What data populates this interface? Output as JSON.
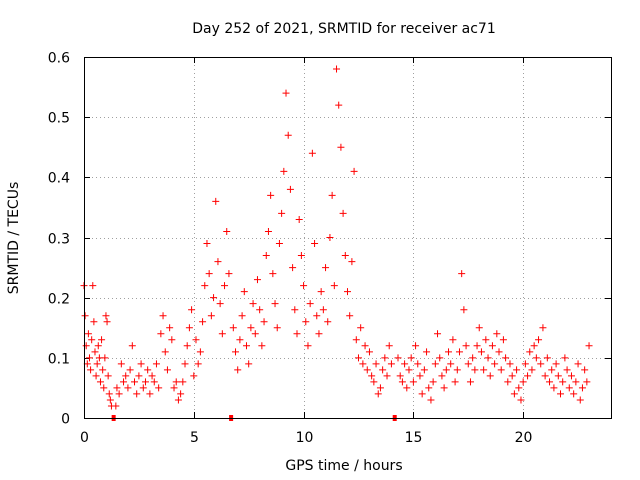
{
  "chart_data": {
    "type": "scatter",
    "title": "Day 252 of 2021, SRMTID for receiver ac71",
    "xlabel": "GPS time / hours",
    "ylabel": "SRMTID / TECUs",
    "xlim": [
      0,
      24
    ],
    "ylim": [
      0,
      0.6
    ],
    "xticks": [
      0,
      5,
      10,
      15,
      20
    ],
    "xtick_labels": [
      "0",
      "5",
      "10",
      "15",
      "20"
    ],
    "yticks": [
      0,
      0.1,
      0.2,
      0.3,
      0.4,
      0.5,
      0.6
    ],
    "ytick_labels": [
      "0",
      "0.1",
      "0.2",
      "0.3",
      "0.4",
      "0.5",
      "0.6"
    ],
    "grid": true,
    "marker": "+",
    "color": "#ff0000",
    "gap_markers_x": [
      1.35,
      6.7,
      14.15
    ],
    "series": [
      {
        "name": "SRMTID",
        "points": [
          [
            0.0,
            0.22
          ],
          [
            0.05,
            0.17
          ],
          [
            0.1,
            0.12
          ],
          [
            0.15,
            0.09
          ],
          [
            0.2,
            0.14
          ],
          [
            0.25,
            0.1
          ],
          [
            0.3,
            0.08
          ],
          [
            0.35,
            0.13
          ],
          [
            0.4,
            0.22
          ],
          [
            0.45,
            0.16
          ],
          [
            0.5,
            0.11
          ],
          [
            0.55,
            0.07
          ],
          [
            0.6,
            0.09
          ],
          [
            0.65,
            0.12
          ],
          [
            0.7,
            0.1
          ],
          [
            0.75,
            0.06
          ],
          [
            0.8,
            0.13
          ],
          [
            0.85,
            0.08
          ],
          [
            0.9,
            0.05
          ],
          [
            0.95,
            0.1
          ],
          [
            1.0,
            0.17
          ],
          [
            1.05,
            0.16
          ],
          [
            1.1,
            0.07
          ],
          [
            1.15,
            0.04
          ],
          [
            1.2,
            0.03
          ],
          [
            1.25,
            0.02
          ],
          [
            1.45,
            0.02
          ],
          [
            1.5,
            0.05
          ],
          [
            1.6,
            0.04
          ],
          [
            1.7,
            0.09
          ],
          [
            1.8,
            0.06
          ],
          [
            1.9,
            0.07
          ],
          [
            2.0,
            0.05
          ],
          [
            2.1,
            0.08
          ],
          [
            2.2,
            0.12
          ],
          [
            2.3,
            0.06
          ],
          [
            2.4,
            0.04
          ],
          [
            2.5,
            0.07
          ],
          [
            2.6,
            0.09
          ],
          [
            2.7,
            0.05
          ],
          [
            2.8,
            0.06
          ],
          [
            2.9,
            0.08
          ],
          [
            3.0,
            0.04
          ],
          [
            3.1,
            0.07
          ],
          [
            3.2,
            0.06
          ],
          [
            3.3,
            0.09
          ],
          [
            3.4,
            0.05
          ],
          [
            3.5,
            0.14
          ],
          [
            3.6,
            0.17
          ],
          [
            3.7,
            0.11
          ],
          [
            3.8,
            0.08
          ],
          [
            3.9,
            0.15
          ],
          [
            4.0,
            0.13
          ],
          [
            4.1,
            0.05
          ],
          [
            4.2,
            0.06
          ],
          [
            4.3,
            0.03
          ],
          [
            4.4,
            0.04
          ],
          [
            4.5,
            0.06
          ],
          [
            4.6,
            0.09
          ],
          [
            4.7,
            0.12
          ],
          [
            4.8,
            0.15
          ],
          [
            4.9,
            0.18
          ],
          [
            5.0,
            0.07
          ],
          [
            5.1,
            0.13
          ],
          [
            5.2,
            0.09
          ],
          [
            5.3,
            0.11
          ],
          [
            5.4,
            0.16
          ],
          [
            5.5,
            0.22
          ],
          [
            5.6,
            0.29
          ],
          [
            5.7,
            0.24
          ],
          [
            5.8,
            0.17
          ],
          [
            5.9,
            0.2
          ],
          [
            6.0,
            0.36
          ],
          [
            6.1,
            0.26
          ],
          [
            6.2,
            0.19
          ],
          [
            6.3,
            0.14
          ],
          [
            6.4,
            0.22
          ],
          [
            6.5,
            0.31
          ],
          [
            6.6,
            0.24
          ],
          [
            6.8,
            0.15
          ],
          [
            6.9,
            0.11
          ],
          [
            7.0,
            0.08
          ],
          [
            7.1,
            0.13
          ],
          [
            7.2,
            0.17
          ],
          [
            7.3,
            0.21
          ],
          [
            7.4,
            0.12
          ],
          [
            7.5,
            0.09
          ],
          [
            7.6,
            0.15
          ],
          [
            7.7,
            0.19
          ],
          [
            7.8,
            0.14
          ],
          [
            7.9,
            0.23
          ],
          [
            8.0,
            0.18
          ],
          [
            8.1,
            0.12
          ],
          [
            8.2,
            0.16
          ],
          [
            8.3,
            0.27
          ],
          [
            8.4,
            0.31
          ],
          [
            8.5,
            0.37
          ],
          [
            8.6,
            0.24
          ],
          [
            8.7,
            0.19
          ],
          [
            8.8,
            0.15
          ],
          [
            8.9,
            0.29
          ],
          [
            9.0,
            0.34
          ],
          [
            9.1,
            0.41
          ],
          [
            9.2,
            0.54
          ],
          [
            9.3,
            0.47
          ],
          [
            9.4,
            0.38
          ],
          [
            9.5,
            0.25
          ],
          [
            9.6,
            0.18
          ],
          [
            9.7,
            0.14
          ],
          [
            9.8,
            0.33
          ],
          [
            9.9,
            0.27
          ],
          [
            10.0,
            0.22
          ],
          [
            10.1,
            0.16
          ],
          [
            10.2,
            0.12
          ],
          [
            10.3,
            0.19
          ],
          [
            10.4,
            0.44
          ],
          [
            10.5,
            0.29
          ],
          [
            10.6,
            0.17
          ],
          [
            10.7,
            0.14
          ],
          [
            10.8,
            0.21
          ],
          [
            10.9,
            0.18
          ],
          [
            11.0,
            0.25
          ],
          [
            11.1,
            0.16
          ],
          [
            11.2,
            0.3
          ],
          [
            11.3,
            0.37
          ],
          [
            11.4,
            0.22
          ],
          [
            11.5,
            0.58
          ],
          [
            11.6,
            0.52
          ],
          [
            11.7,
            0.45
          ],
          [
            11.8,
            0.34
          ],
          [
            11.9,
            0.27
          ],
          [
            12.0,
            0.21
          ],
          [
            12.1,
            0.17
          ],
          [
            12.2,
            0.26
          ],
          [
            12.3,
            0.41
          ],
          [
            12.4,
            0.13
          ],
          [
            12.5,
            0.1
          ],
          [
            12.6,
            0.15
          ],
          [
            12.7,
            0.09
          ],
          [
            12.8,
            0.12
          ],
          [
            12.9,
            0.08
          ],
          [
            13.0,
            0.11
          ],
          [
            13.1,
            0.07
          ],
          [
            13.2,
            0.06
          ],
          [
            13.3,
            0.09
          ],
          [
            13.4,
            0.04
          ],
          [
            13.5,
            0.05
          ],
          [
            13.6,
            0.08
          ],
          [
            13.7,
            0.1
          ],
          [
            13.8,
            0.07
          ],
          [
            13.9,
            0.12
          ],
          [
            14.0,
            0.09
          ],
          [
            14.3,
            0.1
          ],
          [
            14.4,
            0.07
          ],
          [
            14.5,
            0.06
          ],
          [
            14.6,
            0.09
          ],
          [
            14.7,
            0.05
          ],
          [
            14.8,
            0.08
          ],
          [
            14.9,
            0.1
          ],
          [
            15.0,
            0.06
          ],
          [
            15.1,
            0.12
          ],
          [
            15.2,
            0.09
          ],
          [
            15.3,
            0.07
          ],
          [
            15.4,
            0.04
          ],
          [
            15.5,
            0.08
          ],
          [
            15.6,
            0.11
          ],
          [
            15.7,
            0.05
          ],
          [
            15.8,
            0.03
          ],
          [
            15.9,
            0.06
          ],
          [
            16.0,
            0.09
          ],
          [
            16.1,
            0.14
          ],
          [
            16.2,
            0.1
          ],
          [
            16.3,
            0.07
          ],
          [
            16.4,
            0.05
          ],
          [
            16.5,
            0.08
          ],
          [
            16.6,
            0.11
          ],
          [
            16.7,
            0.09
          ],
          [
            16.8,
            0.13
          ],
          [
            16.9,
            0.06
          ],
          [
            17.0,
            0.08
          ],
          [
            17.1,
            0.11
          ],
          [
            17.2,
            0.24
          ],
          [
            17.3,
            0.18
          ],
          [
            17.4,
            0.12
          ],
          [
            17.5,
            0.09
          ],
          [
            17.6,
            0.06
          ],
          [
            17.7,
            0.1
          ],
          [
            17.8,
            0.08
          ],
          [
            17.9,
            0.12
          ],
          [
            18.0,
            0.15
          ],
          [
            18.1,
            0.11
          ],
          [
            18.2,
            0.08
          ],
          [
            18.3,
            0.13
          ],
          [
            18.4,
            0.1
          ],
          [
            18.5,
            0.07
          ],
          [
            18.6,
            0.12
          ],
          [
            18.7,
            0.09
          ],
          [
            18.8,
            0.14
          ],
          [
            18.9,
            0.11
          ],
          [
            19.0,
            0.08
          ],
          [
            19.1,
            0.13
          ],
          [
            19.2,
            0.1
          ],
          [
            19.3,
            0.06
          ],
          [
            19.4,
            0.09
          ],
          [
            19.5,
            0.07
          ],
          [
            19.6,
            0.04
          ],
          [
            19.7,
            0.08
          ],
          [
            19.8,
            0.05
          ],
          [
            19.9,
            0.03
          ],
          [
            20.0,
            0.06
          ],
          [
            20.1,
            0.09
          ],
          [
            20.2,
            0.07
          ],
          [
            20.3,
            0.11
          ],
          [
            20.4,
            0.08
          ],
          [
            20.5,
            0.12
          ],
          [
            20.6,
            0.1
          ],
          [
            20.7,
            0.13
          ],
          [
            20.8,
            0.09
          ],
          [
            20.9,
            0.15
          ],
          [
            21.0,
            0.07
          ],
          [
            21.1,
            0.1
          ],
          [
            21.2,
            0.06
          ],
          [
            21.3,
            0.08
          ],
          [
            21.4,
            0.05
          ],
          [
            21.5,
            0.09
          ],
          [
            21.6,
            0.07
          ],
          [
            21.7,
            0.04
          ],
          [
            21.8,
            0.06
          ],
          [
            21.9,
            0.1
          ],
          [
            22.0,
            0.08
          ],
          [
            22.1,
            0.05
          ],
          [
            22.2,
            0.07
          ],
          [
            22.3,
            0.04
          ],
          [
            22.4,
            0.06
          ],
          [
            22.5,
            0.09
          ],
          [
            22.6,
            0.03
          ],
          [
            22.7,
            0.05
          ],
          [
            22.8,
            0.08
          ],
          [
            22.9,
            0.06
          ],
          [
            23.0,
            0.12
          ]
        ]
      }
    ]
  }
}
